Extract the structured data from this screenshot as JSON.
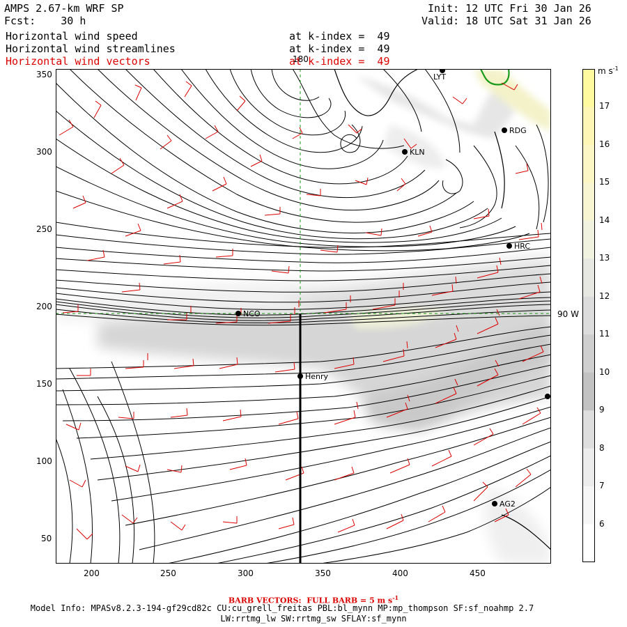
{
  "header": {
    "model": "AMPS 2.67-km WRF SP",
    "forecast": "Fcst:    30 h",
    "init": "Init: 12 UTC Fri 30 Jan 26",
    "valid": "Valid: 18 UTC Sat 31 Jan 26",
    "fields": [
      {
        "name": "Horizontal wind speed",
        "level": "at k-index =  49",
        "color": "#000000"
      },
      {
        "name": "Horizontal wind streamlines",
        "level": "at k-index =  49",
        "color": "#000000"
      },
      {
        "name": "Horizontal wind vectors",
        "level": "at k-index =  49",
        "color": "#dd0000"
      }
    ]
  },
  "axes": {
    "x_ticks": [
      "200",
      "250",
      "300",
      "350",
      "400",
      "450"
    ],
    "y_ticks": [
      "350",
      "300",
      "250",
      "200",
      "150",
      "100",
      "50"
    ],
    "meridian_label": "180",
    "parallel_label": "90 W"
  },
  "stations": [
    {
      "id": "LYT",
      "label": "LYT"
    },
    {
      "id": "RDG",
      "label": "RDG"
    },
    {
      "id": "KLN",
      "label": "KLN"
    },
    {
      "id": "HRC",
      "label": "HRC"
    },
    {
      "id": "NCO",
      "label": "NCO"
    },
    {
      "id": "HENRY",
      "label": "Henry"
    },
    {
      "id": "AG2",
      "label": "AG2"
    },
    {
      "id": "EDGE",
      "label": ""
    }
  ],
  "colorbar": {
    "units": "m s",
    "units_sup": "-1",
    "ticks": [
      "17",
      "16",
      "15",
      "14",
      "13",
      "12",
      "11",
      "10",
      "9",
      "8",
      "7",
      "6"
    ],
    "colors": [
      "#fffaa0",
      "#fdf6b4",
      "#fbf6c4",
      "#f8f5d2",
      "#f2f2e0",
      "#e8e8e2",
      "#dcdcdc",
      "#cfcfcf",
      "#c2c2c2",
      "#dedede",
      "#ececec",
      "#f6f6f6",
      "#ffffff"
    ]
  },
  "footer": {
    "barb_label": "BARB VECTORS:  FULL BARB = 5 m s",
    "barb_sup": "-1",
    "model_info": "Model Info: MPASv8.2.3-194-gf29cd82c CU:cu_grell_freitas PBL:bl_mynn MP:mp_thompson SF:sf_noahmp 2.7",
    "physics": "LW:rrtmg_lw SW:rrtmg_sw SFLAY:sf_mynn"
  }
}
